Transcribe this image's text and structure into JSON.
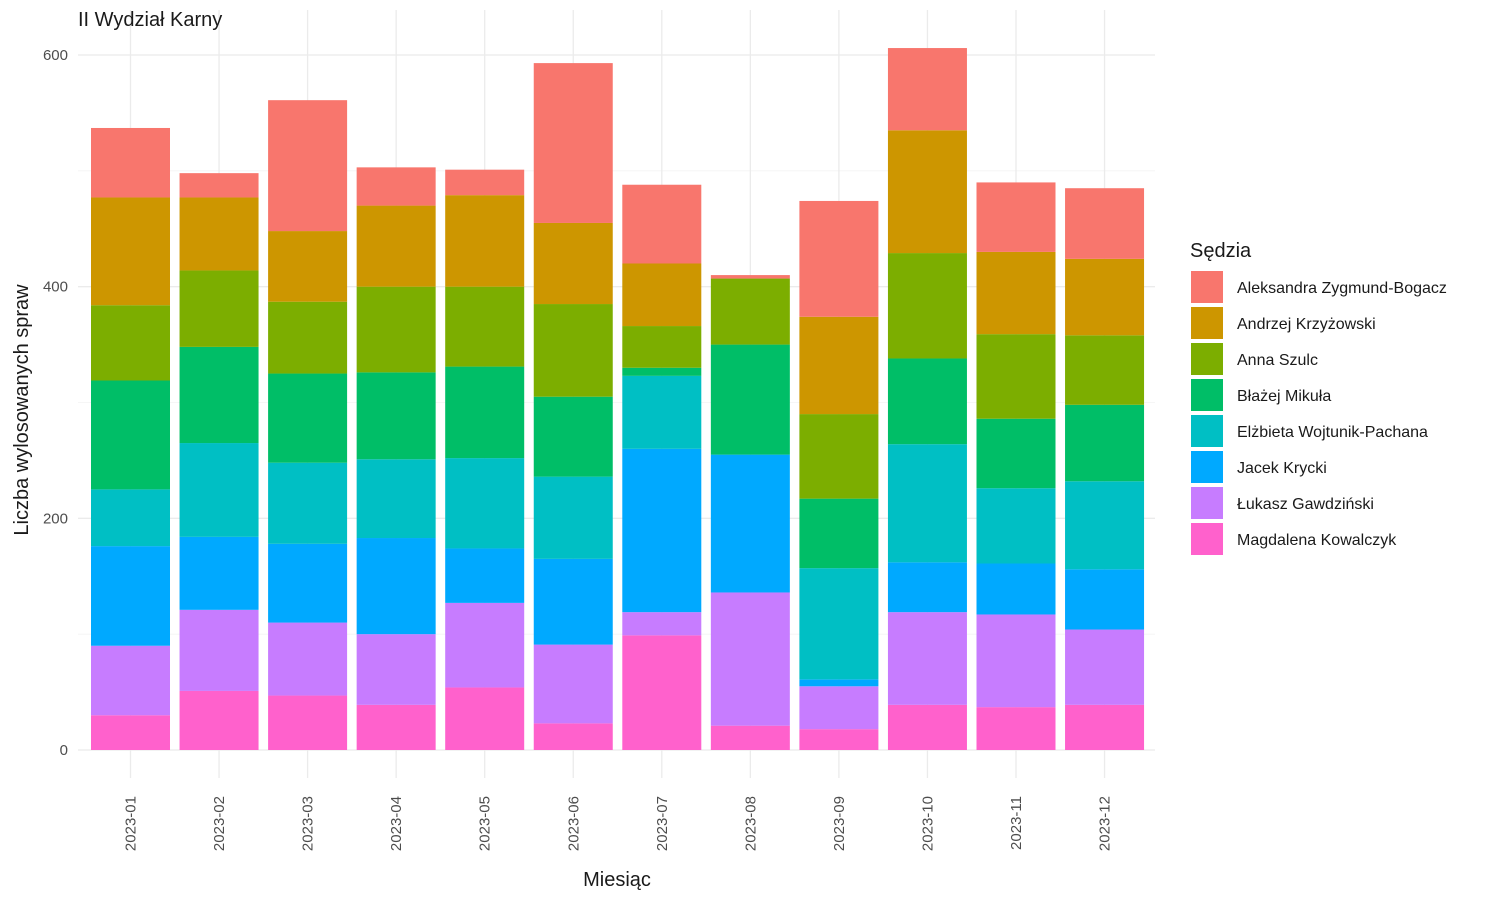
{
  "chart_data": {
    "type": "bar",
    "stacked": true,
    "title": "II Wydział Karny",
    "xlabel": "Miesiąc",
    "ylabel": "Liczba wylosowanych spraw",
    "legend_title": "Sędzia",
    "legend_position": "right",
    "ylim": [
      0,
      620
    ],
    "yticks": [
      0,
      200,
      400,
      600
    ],
    "grid": true,
    "categories": [
      "2023-01",
      "2023-02",
      "2023-03",
      "2023-04",
      "2023-05",
      "2023-06",
      "2023-07",
      "2023-08",
      "2023-09",
      "2023-10",
      "2023-11",
      "2023-12"
    ],
    "series": [
      {
        "name": "Magdalena Kowalczyk",
        "color": "#FF61CC",
        "values": [
          30,
          51,
          47,
          39,
          54,
          23,
          99,
          21,
          18,
          39,
          37,
          39
        ]
      },
      {
        "name": "Łukasz Gawdziński",
        "color": "#C77CFF",
        "values": [
          60,
          70,
          63,
          61,
          73,
          68,
          20,
          115,
          37,
          80,
          80,
          65
        ]
      },
      {
        "name": "Jacek Krycki",
        "color": "#00A9FF",
        "values": [
          86,
          63,
          68,
          83,
          47,
          74,
          141,
          119,
          6,
          43,
          44,
          52
        ]
      },
      {
        "name": "Elżbieta Wojtunik-Pachana",
        "color": "#00BFC4",
        "values": [
          49,
          81,
          70,
          68,
          78,
          71,
          63,
          0,
          96,
          102,
          65,
          76
        ]
      },
      {
        "name": "Błażej Mikuła",
        "color": "#00BE67",
        "values": [
          94,
          83,
          77,
          75,
          79,
          69,
          7,
          95,
          60,
          74,
          60,
          66
        ]
      },
      {
        "name": "Anna Szulc",
        "color": "#7CAE00",
        "values": [
          65,
          66,
          62,
          74,
          69,
          80,
          36,
          57,
          73,
          91,
          73,
          60
        ]
      },
      {
        "name": "Andrzej Krzyżowski",
        "color": "#CD9600",
        "values": [
          93,
          63,
          61,
          70,
          79,
          70,
          54,
          0,
          84,
          106,
          71,
          66
        ]
      },
      {
        "name": "Aleksandra Zygmund-Bogacz",
        "color": "#F8766D",
        "values": [
          60,
          21,
          113,
          33,
          22,
          138,
          68,
          3,
          100,
          71,
          60,
          61
        ]
      }
    ],
    "legend_order": [
      "Aleksandra Zygmund-Bogacz",
      "Andrzej Krzyżowski",
      "Anna Szulc",
      "Błażej Mikuła",
      "Elżbieta Wojtunik-Pachana",
      "Jacek Krycki",
      "Łukasz Gawdziński",
      "Magdalena Kowalczyk"
    ]
  }
}
